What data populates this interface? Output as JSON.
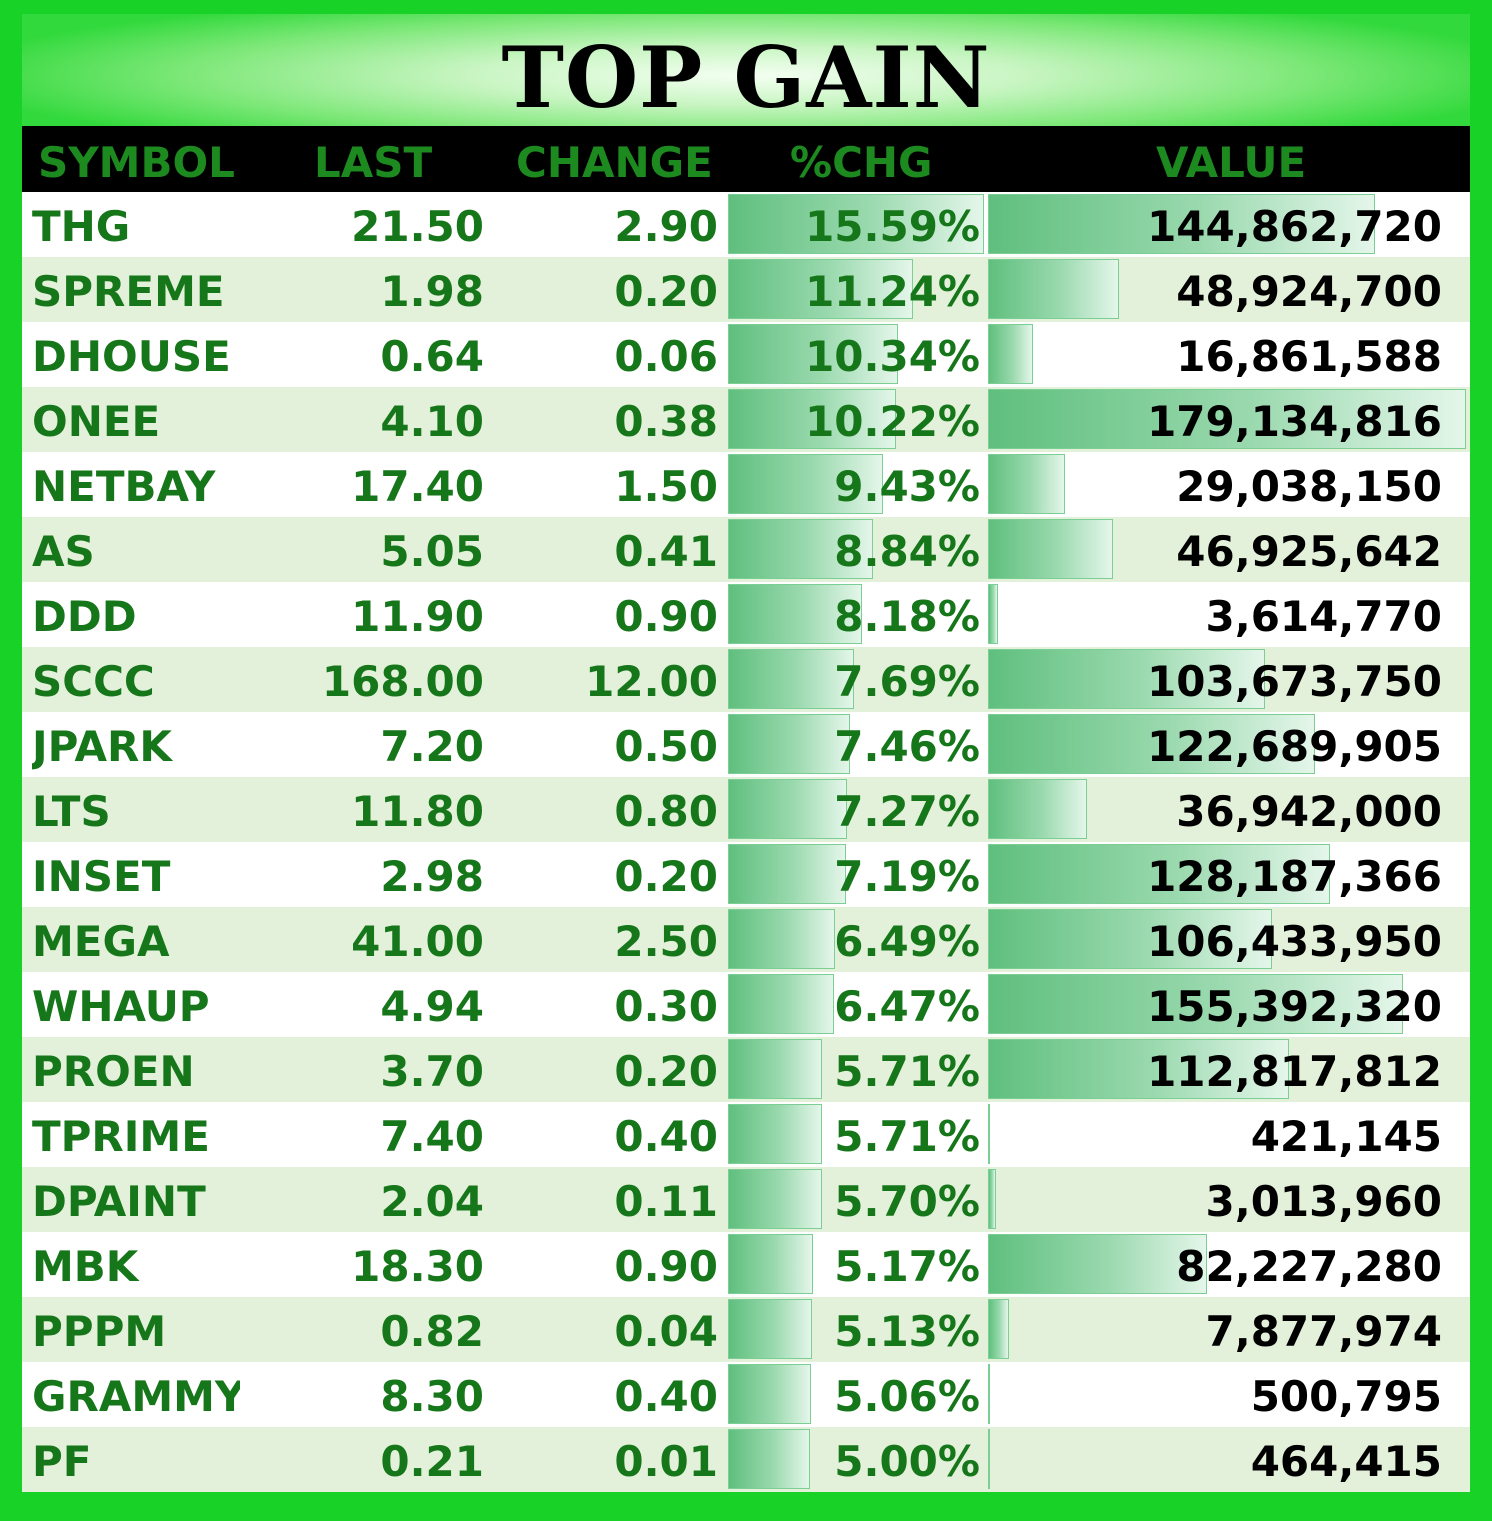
{
  "title": "TOP GAIN",
  "colors": {
    "frame": "#19d227",
    "header_bg": "#000000",
    "header_text": "#1d8a1f",
    "row_text": "#16761a",
    "row_alt": "#e3f0da",
    "bar": "#5fbf7e"
  },
  "columns": [
    "SYMBOL",
    "LAST",
    "CHANGE",
    "%CHG",
    "VALUE"
  ],
  "chart_data": {
    "type": "table",
    "title": "TOP GAIN",
    "columns": [
      "SYMBOL",
      "LAST",
      "CHANGE",
      "%CHG",
      "VALUE"
    ],
    "rows": [
      {
        "symbol": "THG",
        "last": "21.50",
        "change": "2.90",
        "pct": "15.59%",
        "value": "144,862,720",
        "pct_num": 15.59,
        "value_num": 144862720
      },
      {
        "symbol": "SPREME",
        "last": "1.98",
        "change": "0.20",
        "pct": "11.24%",
        "value": "48,924,700",
        "pct_num": 11.24,
        "value_num": 48924700
      },
      {
        "symbol": "DHOUSE",
        "last": "0.64",
        "change": "0.06",
        "pct": "10.34%",
        "value": "16,861,588",
        "pct_num": 10.34,
        "value_num": 16861588
      },
      {
        "symbol": "ONEE",
        "last": "4.10",
        "change": "0.38",
        "pct": "10.22%",
        "value": "179,134,816",
        "pct_num": 10.22,
        "value_num": 179134816
      },
      {
        "symbol": "NETBAY",
        "last": "17.40",
        "change": "1.50",
        "pct": "9.43%",
        "value": "29,038,150",
        "pct_num": 9.43,
        "value_num": 29038150
      },
      {
        "symbol": "AS",
        "last": "5.05",
        "change": "0.41",
        "pct": "8.84%",
        "value": "46,925,642",
        "pct_num": 8.84,
        "value_num": 46925642
      },
      {
        "symbol": "DDD",
        "last": "11.90",
        "change": "0.90",
        "pct": "8.18%",
        "value": "3,614,770",
        "pct_num": 8.18,
        "value_num": 3614770
      },
      {
        "symbol": "SCCC",
        "last": "168.00",
        "change": "12.00",
        "pct": "7.69%",
        "value": "103,673,750",
        "pct_num": 7.69,
        "value_num": 103673750
      },
      {
        "symbol": "JPARK",
        "last": "7.20",
        "change": "0.50",
        "pct": "7.46%",
        "value": "122,689,905",
        "pct_num": 7.46,
        "value_num": 122689905
      },
      {
        "symbol": "LTS",
        "last": "11.80",
        "change": "0.80",
        "pct": "7.27%",
        "value": "36,942,000",
        "pct_num": 7.27,
        "value_num": 36942000
      },
      {
        "symbol": "INSET",
        "last": "2.98",
        "change": "0.20",
        "pct": "7.19%",
        "value": "128,187,366",
        "pct_num": 7.19,
        "value_num": 128187366
      },
      {
        "symbol": "MEGA",
        "last": "41.00",
        "change": "2.50",
        "pct": "6.49%",
        "value": "106,433,950",
        "pct_num": 6.49,
        "value_num": 106433950
      },
      {
        "symbol": "WHAUP",
        "last": "4.94",
        "change": "0.30",
        "pct": "6.47%",
        "value": "155,392,320",
        "pct_num": 6.47,
        "value_num": 155392320
      },
      {
        "symbol": "PROEN",
        "last": "3.70",
        "change": "0.20",
        "pct": "5.71%",
        "value": "112,817,812",
        "pct_num": 5.71,
        "value_num": 112817812
      },
      {
        "symbol": "TPRIME",
        "last": "7.40",
        "change": "0.40",
        "pct": "5.71%",
        "value": "421,145",
        "pct_num": 5.71,
        "value_num": 421145
      },
      {
        "symbol": "DPAINT",
        "last": "2.04",
        "change": "0.11",
        "pct": "5.70%",
        "value": "3,013,960",
        "pct_num": 5.7,
        "value_num": 3013960
      },
      {
        "symbol": "MBK",
        "last": "18.30",
        "change": "0.90",
        "pct": "5.17%",
        "value": "82,227,280",
        "pct_num": 5.17,
        "value_num": 82227280
      },
      {
        "symbol": "PPPM",
        "last": "0.82",
        "change": "0.04",
        "pct": "5.13%",
        "value": "7,877,974",
        "pct_num": 5.13,
        "value_num": 7877974
      },
      {
        "symbol": "GRAMMY",
        "last": "8.30",
        "change": "0.40",
        "pct": "5.06%",
        "value": "500,795",
        "pct_num": 5.06,
        "value_num": 500795
      },
      {
        "symbol": "PF",
        "last": "0.21",
        "change": "0.01",
        "pct": "5.00%",
        "value": "464,415",
        "pct_num": 5.0,
        "value_num": 464415
      }
    ]
  }
}
